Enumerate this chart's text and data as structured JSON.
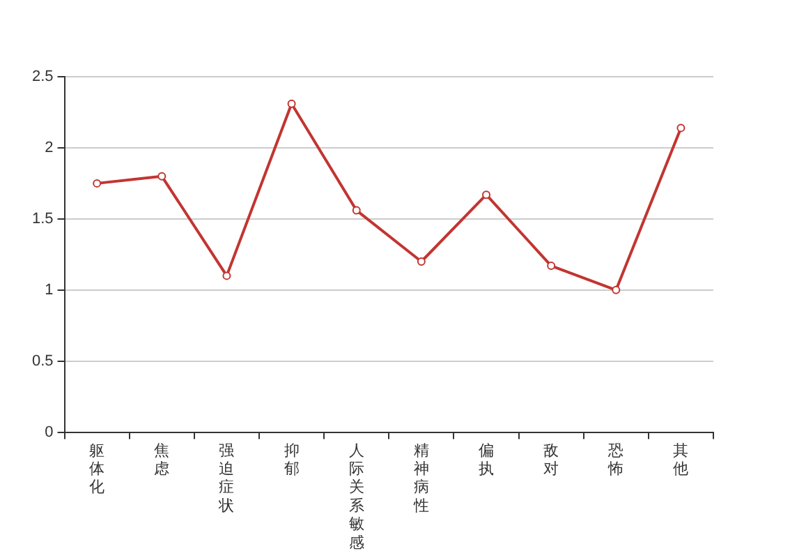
{
  "chart_data": {
    "type": "line",
    "categories": [
      "躯体化",
      "焦虑",
      "强迫症状",
      "抑郁",
      "人际关系敏感",
      "精神病性",
      "偏执",
      "敌对",
      "恐怖",
      "其他"
    ],
    "series": [
      {
        "color": "#c23531",
        "values": [
          1.75,
          1.8,
          1.1,
          2.31,
          1.56,
          1.2,
          1.67,
          1.17,
          1.0,
          2.14
        ]
      }
    ],
    "ylim": [
      0,
      2.5
    ],
    "yticks": [
      0,
      0.5,
      1,
      1.5,
      2,
      2.5
    ],
    "grid": "y",
    "legend": false,
    "marker": "circle",
    "line_style": "solid"
  }
}
